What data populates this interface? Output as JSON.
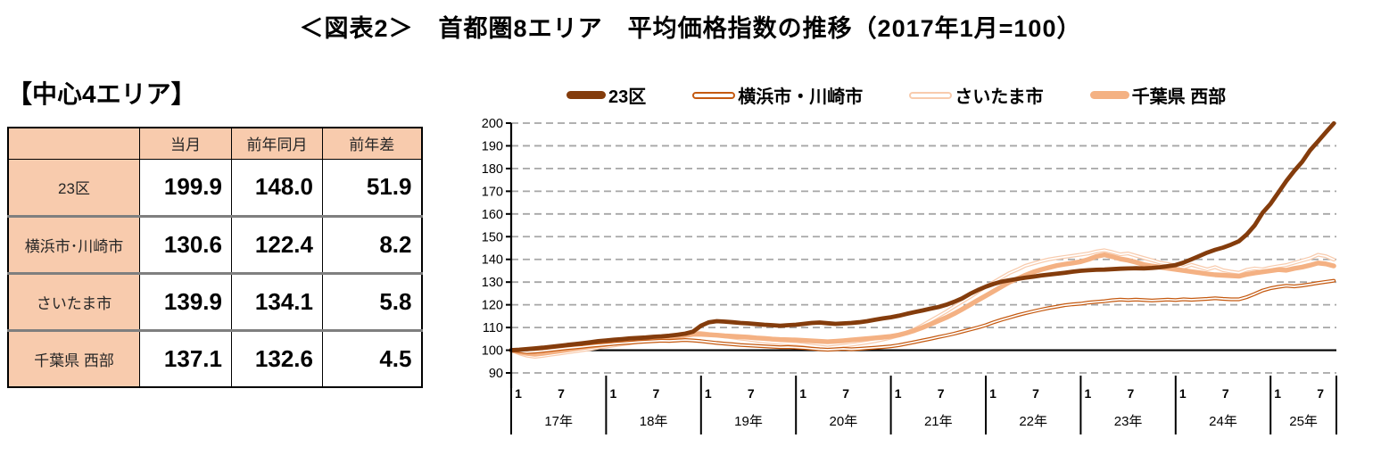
{
  "title": "＜図表2＞　首都圏8エリア　平均価格指数の推移（2017年1月=100）",
  "section_heading": "【中心4エリア】",
  "table": {
    "headers": [
      "",
      "当月",
      "前年同月",
      "前年差"
    ],
    "rows": [
      {
        "label": "23区",
        "values": [
          "199.9",
          "148.0",
          "51.9"
        ]
      },
      {
        "label": "横浜市･川崎市",
        "values": [
          "130.6",
          "122.4",
          "8.2"
        ]
      },
      {
        "label": "さいたま市",
        "values": [
          "139.9",
          "134.1",
          "5.8"
        ]
      },
      {
        "label": "千葉県 西部",
        "values": [
          "137.1",
          "132.6",
          "4.5"
        ]
      }
    ]
  },
  "chart_data": {
    "type": "line",
    "title": "首都圏8エリア 平均価格指数の推移（2017年1月=100）",
    "x_interval": "monthly",
    "x_start": "2017-01",
    "x_end": "2025-09",
    "ylim": [
      90,
      200
    ],
    "ytick_step": 10,
    "baseline_value": 100,
    "grid": "dashed-horizontal",
    "grid_color": "#A6A6A6",
    "axis_color": "#000000",
    "legend_position": "top",
    "x_axis": {
      "month_tick_labels": [
        "1",
        "7"
      ],
      "year_labels": [
        "17年",
        "18年",
        "19年",
        "20年",
        "21年",
        "22年",
        "23年",
        "24年",
        "25年"
      ]
    },
    "series": [
      {
        "name": "23区",
        "color": "#843C0C",
        "line_style": "solid",
        "values": [
          100,
          100.2,
          100.5,
          100.8,
          101.1,
          101.5,
          101.9,
          102.3,
          102.7,
          103.1,
          103.5,
          104,
          104.3,
          104.6,
          104.9,
          105.2,
          105.4,
          105.6,
          105.9,
          106.1,
          106.4,
          106.8,
          107.3,
          108.2,
          110.8,
          112.3,
          112.8,
          112.6,
          112.3,
          112,
          111.8,
          111.5,
          111.2,
          111,
          110.8,
          111,
          111.2,
          111.6,
          112,
          112.2,
          111.9,
          111.6,
          111.8,
          112,
          112.3,
          112.8,
          113.4,
          114,
          114.5,
          115.2,
          116,
          116.8,
          117.5,
          118.3,
          119,
          120,
          121.3,
          122.8,
          124.8,
          126.5,
          128,
          129.2,
          130.2,
          130.8,
          131.4,
          131.9,
          132.4,
          132.9,
          133.3,
          133.7,
          134.1,
          134.6,
          135,
          135.2,
          135.4,
          135.5,
          135.7,
          135.9,
          136,
          136.1,
          136,
          136.2,
          136.5,
          137,
          137.5,
          138.6,
          140,
          141.5,
          143,
          144.2,
          145.2,
          146.5,
          148,
          151,
          155,
          160.5,
          164.5,
          169.5,
          174.5,
          179,
          183,
          188,
          192,
          196,
          199.9
        ]
      },
      {
        "name": "横浜市・川崎市",
        "color": "#C55A11",
        "line_style": "hollow",
        "values": [
          100,
          99.6,
          99.2,
          99.4,
          99.7,
          100.1,
          100.5,
          100.9,
          101.2,
          101.5,
          101.9,
          102.2,
          102.5,
          102.8,
          103.1,
          103.3,
          103.6,
          103.8,
          104,
          104.2,
          104.1,
          104.3,
          104.5,
          104.3,
          104,
          103.6,
          103.2,
          102.9,
          102.6,
          102.3,
          102.1,
          101.9,
          101.7,
          101.5,
          101.3,
          101.4,
          101.2,
          101,
          100.7,
          100.4,
          100.2,
          100.4,
          100.6,
          100.4,
          100.6,
          100.9,
          101.1,
          101.4,
          101.7,
          102.2,
          102.9,
          103.6,
          104.3,
          105,
          105.8,
          106.5,
          107.3,
          108.2,
          109.1,
          110,
          111,
          112.3,
          113.4,
          114.4,
          115.4,
          116.3,
          117.1,
          117.9,
          118.6,
          119.2,
          119.8,
          120.2,
          120.5,
          121,
          121.3,
          121.6,
          122,
          122.3,
          122.1,
          122.3,
          122.1,
          121.9,
          122.1,
          122.3,
          122.1,
          122.4,
          122.2,
          122.4,
          122.6,
          122.9,
          122.6,
          122.4,
          122.4,
          123.4,
          124.8,
          126.3,
          127.3,
          127.9,
          128.4,
          128.1,
          128.5,
          129,
          129.6,
          130.1,
          130.6
        ]
      },
      {
        "name": "さいたま市",
        "color": "#F8CBAD",
        "line_style": "hollow",
        "values": [
          100,
          98.6,
          97.6,
          97.1,
          97.5,
          98,
          98.5,
          99,
          99.5,
          100,
          100.5,
          101.1,
          101.6,
          102.1,
          102.6,
          103.1,
          103.6,
          104.1,
          104.6,
          105.1,
          105.7,
          106.5,
          107.4,
          108,
          107.6,
          107.1,
          106.6,
          106.1,
          105.6,
          105.1,
          104.7,
          104.2,
          103.8,
          103.5,
          103.2,
          103,
          102.8,
          102.4,
          102,
          101.6,
          101.2,
          101.6,
          102,
          102.4,
          102.9,
          103.4,
          104,
          104.7,
          105.5,
          106.5,
          107.8,
          109.2,
          111,
          113,
          115,
          117,
          119.2,
          121.3,
          123.4,
          125.7,
          128,
          130,
          132,
          134,
          135.5,
          137.2,
          138.2,
          139.2,
          140,
          140.6,
          141.1,
          141.6,
          142.1,
          142.6,
          143.5,
          144,
          143.2,
          142.2,
          142.6,
          141.6,
          140.6,
          139.6,
          138.6,
          138,
          137.2,
          136.4,
          137.6,
          136.6,
          135.6,
          136.6,
          135.2,
          134.6,
          134.1,
          135.4,
          136,
          135.6,
          136.4,
          137,
          137.5,
          138.5,
          139.5,
          140.5,
          142,
          141.4,
          139.9
        ]
      },
      {
        "name": "千葉県 西部",
        "color": "#F4B183",
        "line_style": "solid",
        "values": [
          100,
          99.2,
          98.6,
          98.2,
          98.6,
          99.1,
          99.6,
          100.1,
          100.6,
          101.1,
          101.6,
          102.1,
          102.6,
          103.1,
          103.6,
          104.1,
          104.5,
          104.9,
          105.1,
          105.4,
          105.6,
          106,
          106.5,
          107,
          107,
          106.8,
          106.6,
          106.3,
          106.1,
          105.9,
          105.7,
          105.4,
          105.2,
          104.9,
          104.7,
          104.6,
          104.5,
          104.3,
          104.1,
          103.9,
          103.7,
          103.9,
          104.2,
          104.5,
          104.8,
          105.1,
          105.4,
          105.7,
          106.1,
          106.7,
          107.6,
          108.7,
          110,
          111.4,
          112.9,
          114.4,
          116.1,
          118,
          120,
          122,
          124,
          126,
          128,
          130,
          131.5,
          133,
          134.4,
          135.5,
          136.4,
          137.3,
          137.9,
          138.4,
          139,
          140,
          141.3,
          142,
          141.2,
          140.2,
          139.6,
          138.7,
          137.7,
          137.1,
          136.6,
          136.1,
          135.6,
          135.1,
          134.6,
          134.1,
          133.6,
          133.2,
          133,
          132.8,
          132.6,
          133.4,
          134,
          134.5,
          135,
          135.5,
          135.2,
          136,
          136.6,
          137.4,
          138.4,
          138,
          137.1
        ]
      }
    ]
  }
}
